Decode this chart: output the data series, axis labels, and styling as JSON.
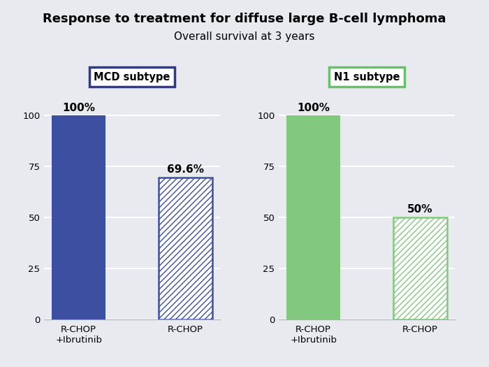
{
  "title_line1": "Response to treatment for diffuse large B-cell lymphoma",
  "title_line2": "Overall survival at 3 years",
  "background_color": "#e8eaf0",
  "left_panel": {
    "label": "MCD subtype",
    "label_color": "#2e3a8c",
    "bar1_value": 100,
    "bar1_label": "100%",
    "bar1_color": "#3d4fa0",
    "bar1_x": "R-CHOP\n+Ibrutinib",
    "bar2_value": 69.6,
    "bar2_label": "69.6%",
    "bar2_color": "#3d4fa0",
    "bar2_x": "R-CHOP"
  },
  "right_panel": {
    "label": "N1 subtype",
    "label_color": "#6abf6a",
    "bar1_value": 100,
    "bar1_label": "100%",
    "bar1_color": "#82c87e",
    "bar1_x": "R-CHOP\n+Ibrutinib",
    "bar2_value": 50,
    "bar2_label": "50%",
    "bar2_color": "#82c87e",
    "bar2_x": "R-CHOP"
  },
  "ylim": [
    0,
    108
  ],
  "yticks": [
    0,
    25,
    50,
    75,
    100
  ],
  "grid_color": "#ffffff",
  "hatch_pattern": "////",
  "bar_width": 0.5,
  "label_fontsize": 11,
  "tick_fontsize": 9.5,
  "title1_fontsize": 13,
  "title2_fontsize": 11,
  "subtype_fontsize": 10.5
}
